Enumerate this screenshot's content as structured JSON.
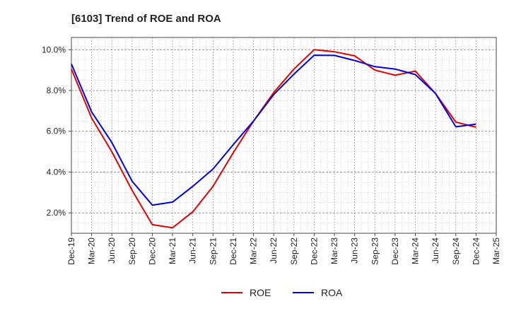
{
  "chart_data": {
    "type": "line",
    "title": "[6103]  Trend of ROE and ROA",
    "xlabel": "",
    "ylabel": "",
    "x": [
      "Dec-19",
      "Mar-20",
      "Jun-20",
      "Sep-20",
      "Dec-20",
      "Mar-21",
      "Jun-21",
      "Sep-21",
      "Dec-21",
      "Mar-22",
      "Jun-22",
      "Sep-22",
      "Dec-22",
      "Mar-23",
      "Jun-23",
      "Sep-23",
      "Dec-23",
      "Mar-24",
      "Jun-24",
      "Sep-24",
      "Dec-24",
      "Mar-25"
    ],
    "y_ticks": [
      "2.0%",
      "4.0%",
      "6.0%",
      "8.0%",
      "10.0%"
    ],
    "y_tick_values": [
      2,
      4,
      6,
      8,
      10
    ],
    "ylim": [
      1.0,
      10.6
    ],
    "grid": true,
    "legend_position": "bottom",
    "series": [
      {
        "name": "ROE",
        "color": "#e60000",
        "values": [
          9.05,
          6.65,
          5.0,
          3.1,
          1.42,
          1.27,
          2.05,
          3.3,
          4.95,
          6.5,
          7.9,
          9.05,
          10.0,
          9.9,
          9.7,
          9.0,
          8.75,
          8.95,
          7.85,
          6.45,
          6.2,
          null
        ]
      },
      {
        "name": "ROA",
        "color": "#0000e6",
        "values": [
          9.3,
          6.95,
          5.45,
          3.55,
          2.38,
          2.53,
          3.3,
          4.15,
          5.35,
          6.5,
          7.8,
          8.8,
          9.73,
          9.72,
          9.47,
          9.17,
          9.05,
          8.78,
          7.85,
          6.22,
          6.35,
          null
        ]
      }
    ]
  }
}
